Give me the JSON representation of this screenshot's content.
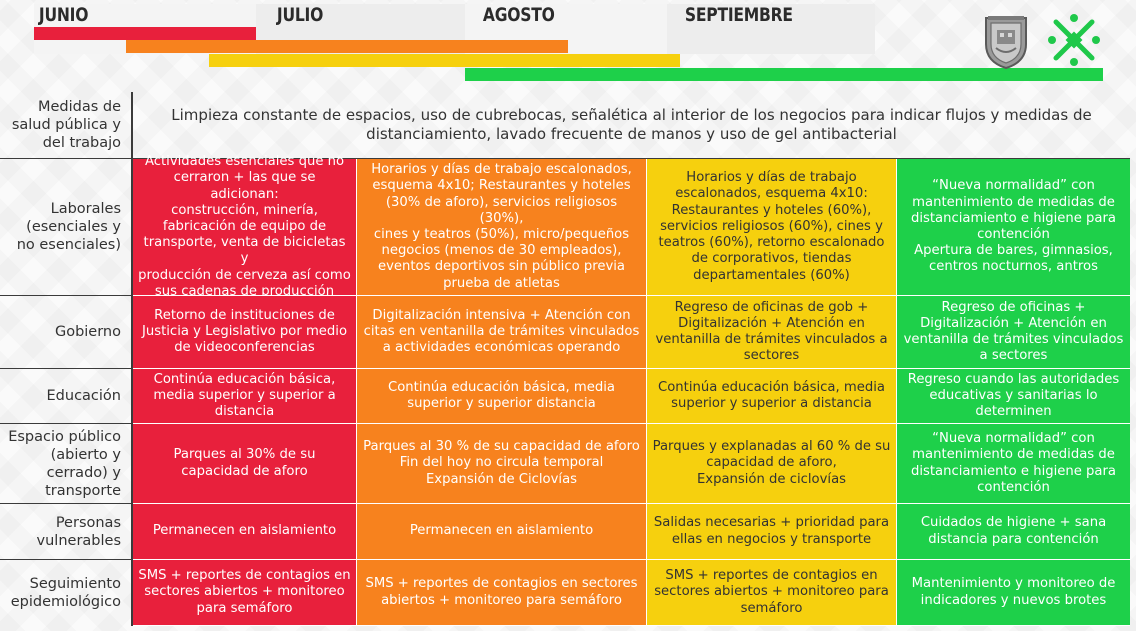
{
  "header": {
    "months": [
      "JUNIO",
      "JULIO",
      "AGOSTO",
      "SEPTIEMBRE"
    ],
    "colors": {
      "red": "#e8203c",
      "orange": "#f7821e",
      "yellow": "#f6d00e",
      "green": "#1ed04a"
    },
    "logos": [
      "cdmx-shield-icon",
      "cdmx-logo-icon"
    ]
  },
  "rows": [
    {
      "label": "Medidas de\nsalud pública y\ndel trabajo",
      "span": "Limpieza constante de espacios, uso de cubrebocas, señalética al interior de los negocios para indicar flujos y medidas de\ndistanciamiento, lavado frecuente de manos y uso de gel antibacterial"
    },
    {
      "label": "Laborales\n(esenciales y\nno esenciales)",
      "red": "Actividades esenciales que no\ncerraron + las que se adicionan:\nconstrucción, minería,\nfabricación de equipo de\ntransporte, venta de bicicletas y\nproducción de cerveza así como\nsus cadenas de producción",
      "orange": "Horarios y días de trabajo escalonados,\nesquema 4x10; Restaurantes y hoteles\n(30% de aforo), servicios religiosos (30%),\ncines y teatros (50%), micro/pequeños\nnegocios (menos de 30 empleados),\neventos deportivos sin público previa\nprueba de atletas",
      "yellow": "Horarios y días de trabajo\nescalonados, esquema 4x10:\nRestaurantes y hoteles (60%),\nservicios religiosos (60%), cines y\nteatros (60%), retorno escalonado\nde corporativos, tiendas\ndepartamentales (60%)",
      "green": "“Nueva normalidad” con\nmantenimiento de medidas de\ndistanciamiento e higiene para\ncontención\nApertura de bares, gimnasios,\ncentros nocturnos, antros"
    },
    {
      "label": "Gobierno",
      "red": "Retorno de instituciones de\nJusticia y Legislativo por medio\nde videoconferencias",
      "orange": "Digitalización intensiva + Atención con\ncitas en ventanilla de trámites vinculados\na actividades económicas operando",
      "yellow": "Regreso de oficinas de gob +\nDigitalización + Atención en\nventanilla de trámites vinculados a\nsectores",
      "green": "Regreso de oficinas +\nDigitalización + Atención en\nventanilla de trámites vinculados\na sectores"
    },
    {
      "label": "Educación",
      "red": "Continúa educación básica,\nmedia superior y superior  a\ndistancia",
      "orange": "Continúa educación básica, media\nsuperior y superior distancia",
      "yellow": "Continúa educación básica, media\nsuperior y superior a distancia",
      "green": "Regreso cuando las autoridades\neducativas y sanitarias lo\ndeterminen"
    },
    {
      "label": "Espacio público\n(abierto y\ncerrado) y\ntransporte",
      "red": "Parques al 30% de su\ncapacidad de aforo",
      "orange": "Parques al 30 % de su capacidad de aforo\nFin del hoy no circula temporal\nExpansión de Ciclovías",
      "yellow": "Parques y explanadas al 60 % de su\ncapacidad de aforo,\nExpansión de ciclovías",
      "green": "“Nueva normalidad” con\nmantenimiento de medidas de\ndistanciamiento e higiene para\ncontención"
    },
    {
      "label": "Personas\nvulnerables",
      "red": "Permanecen en aislamiento",
      "orange": "Permanecen en aislamiento",
      "yellow": "Salidas necesarias + prioridad para\nellas en negocios y transporte",
      "green": "Cuidados de higiene + sana\ndistancia para contención"
    },
    {
      "label": "Seguimiento\nepidemiológico",
      "red": "SMS + reportes de contagios en\nsectores abiertos + monitoreo\npara semáforo",
      "orange": "SMS + reportes de contagios en sectores\nabiertos + monitoreo para semáforo",
      "yellow": "SMS + reportes de contagios en\nsectores abiertos + monitoreo para\nsemáforo",
      "green": "Mantenimiento y monitoreo de\nindicadores y nuevos brotes"
    }
  ]
}
